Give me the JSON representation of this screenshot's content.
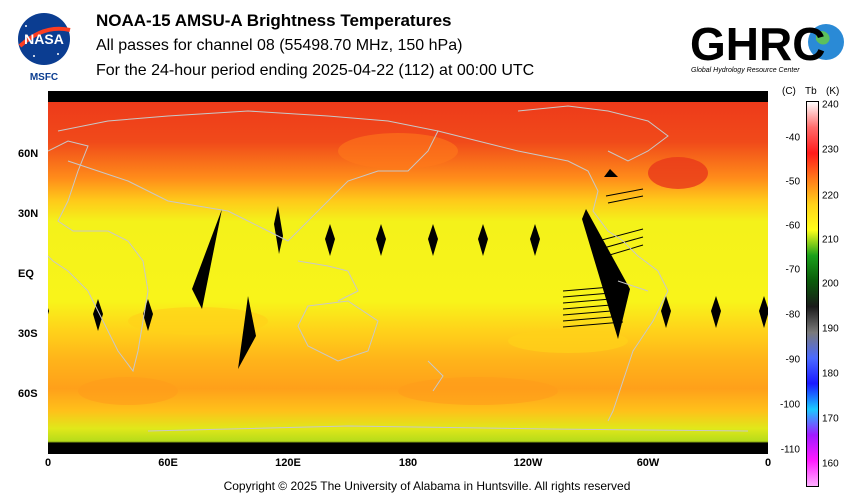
{
  "header": {
    "title": "NOAA-15 AMSU-A Brightness Temperatures",
    "subtitle1": "All passes for channel 08 (55498.70 MHz, 150 hPa)",
    "subtitle2": "For the 24-hour period ending 2025-04-22 (112) at 00:00 UTC"
  },
  "logos": {
    "nasa": {
      "text": "NASA",
      "caption": "MSFC"
    },
    "ghrc": {
      "text": "GHRC",
      "caption": "Global Hydrology Resource Center"
    }
  },
  "map": {
    "lat_labels": [
      "60N",
      "30N",
      "EQ",
      "30S",
      "60S"
    ],
    "lon_labels": [
      "0",
      "60E",
      "120E",
      "180",
      "120W",
      "60W",
      "0"
    ],
    "colors": {
      "hot": "#e8381a",
      "warm": "#ff8c1a",
      "mid": "#ffd21a",
      "cool": "#f7f31a",
      "cold": "#b6dc1a",
      "nodata": "#000000",
      "coast": "#c8c8c8"
    }
  },
  "colorbar": {
    "header_c": "(C)",
    "header_tb": "Tb",
    "header_k": "(K)",
    "celsius_ticks": [
      "-40",
      "-50",
      "-60",
      "-70",
      "-80",
      "-90",
      "-100",
      "-110"
    ],
    "kelvin_ticks": [
      "240",
      "230",
      "220",
      "210",
      "200",
      "190",
      "180",
      "170",
      "160"
    ],
    "stops": [
      "#ffffff",
      "#ff6a6a",
      "#ff1a1a",
      "#ff7a1a",
      "#ffd21a",
      "#ffff1a",
      "#1aa01a",
      "#0a5a0a",
      "#1a1a1a",
      "#7a7a7a",
      "#4a6aff",
      "#1a1aff",
      "#1acaff",
      "#a01aff",
      "#ff1aff",
      "#ffb0ff"
    ]
  },
  "footer": {
    "copyright": "Copyright © 2025 The University of Alabama in Huntsville.  All rights reserved"
  }
}
